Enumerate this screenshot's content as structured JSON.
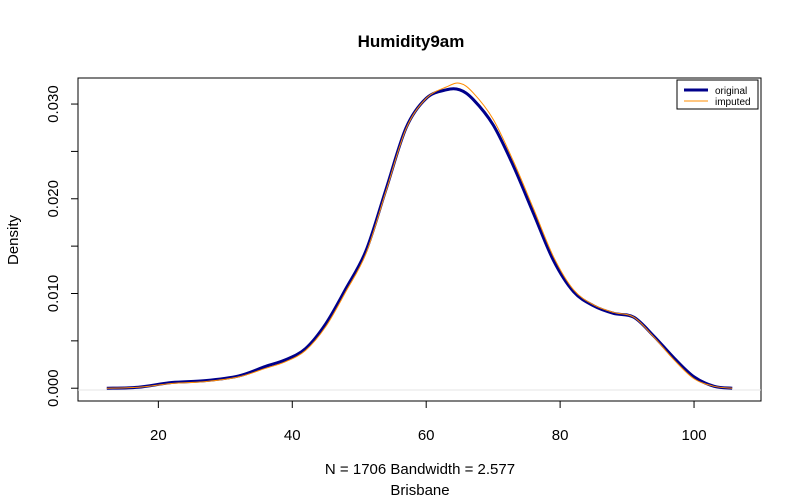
{
  "chart_data": {
    "type": "line",
    "title": "Humidity9am",
    "xlabel": "N = 1706   Bandwidth = 2.577",
    "sublabel": "Brisbane",
    "ylabel": "Density",
    "xlim": [
      8,
      110
    ],
    "ylim": [
      -0.00135,
      0.03275
    ],
    "x_ticks": [
      20,
      40,
      60,
      80,
      100
    ],
    "x_tick_labels": [
      "20",
      "40",
      "60",
      "80",
      "100"
    ],
    "y_ticks": [
      0.0,
      0.01,
      0.02,
      0.03
    ],
    "y_tick_labels": [
      "0.000",
      "0.010",
      "0.020",
      "0.030"
    ],
    "legend_position": "top-right",
    "series": [
      {
        "name": "original",
        "color": "#00008b",
        "points": [
          [
            12.3,
            0.0
          ],
          [
            17,
            0.0001
          ],
          [
            22,
            0.0006
          ],
          [
            27,
            0.0008
          ],
          [
            32,
            0.0013
          ],
          [
            36,
            0.0023
          ],
          [
            39,
            0.003
          ],
          [
            42,
            0.0042
          ],
          [
            45,
            0.0068
          ],
          [
            48,
            0.0105
          ],
          [
            51,
            0.0145
          ],
          [
            54,
            0.021
          ],
          [
            57,
            0.0275
          ],
          [
            60,
            0.0306
          ],
          [
            63,
            0.0315
          ],
          [
            65,
            0.0315
          ],
          [
            67,
            0.0305
          ],
          [
            70,
            0.0278
          ],
          [
            73,
            0.0235
          ],
          [
            76,
            0.0185
          ],
          [
            79,
            0.0135
          ],
          [
            82,
            0.0102
          ],
          [
            85,
            0.0087
          ],
          [
            88,
            0.0079
          ],
          [
            91,
            0.0075
          ],
          [
            94,
            0.0055
          ],
          [
            97,
            0.0032
          ],
          [
            100,
            0.0012
          ],
          [
            103,
            0.0002
          ],
          [
            105.7,
            0.0
          ]
        ]
      },
      {
        "name": "imputed",
        "color": "#ff8c00",
        "points": [
          [
            12.3,
            0.0
          ],
          [
            17,
            0.0001
          ],
          [
            22,
            0.0005
          ],
          [
            27,
            0.0007
          ],
          [
            32,
            0.0012
          ],
          [
            36,
            0.0021
          ],
          [
            39,
            0.0028
          ],
          [
            42,
            0.004
          ],
          [
            45,
            0.0065
          ],
          [
            48,
            0.0102
          ],
          [
            51,
            0.0142
          ],
          [
            54,
            0.0208
          ],
          [
            57,
            0.0274
          ],
          [
            60,
            0.0306
          ],
          [
            63,
            0.0318
          ],
          [
            65,
            0.0322
          ],
          [
            67,
            0.0312
          ],
          [
            70,
            0.0284
          ],
          [
            73,
            0.024
          ],
          [
            76,
            0.019
          ],
          [
            79,
            0.0139
          ],
          [
            82,
            0.0104
          ],
          [
            85,
            0.0088
          ],
          [
            88,
            0.008
          ],
          [
            91,
            0.0075
          ],
          [
            94,
            0.0054
          ],
          [
            97,
            0.003
          ],
          [
            100,
            0.001
          ],
          [
            103,
            0.0002
          ],
          [
            105.7,
            0.0
          ]
        ]
      }
    ]
  }
}
